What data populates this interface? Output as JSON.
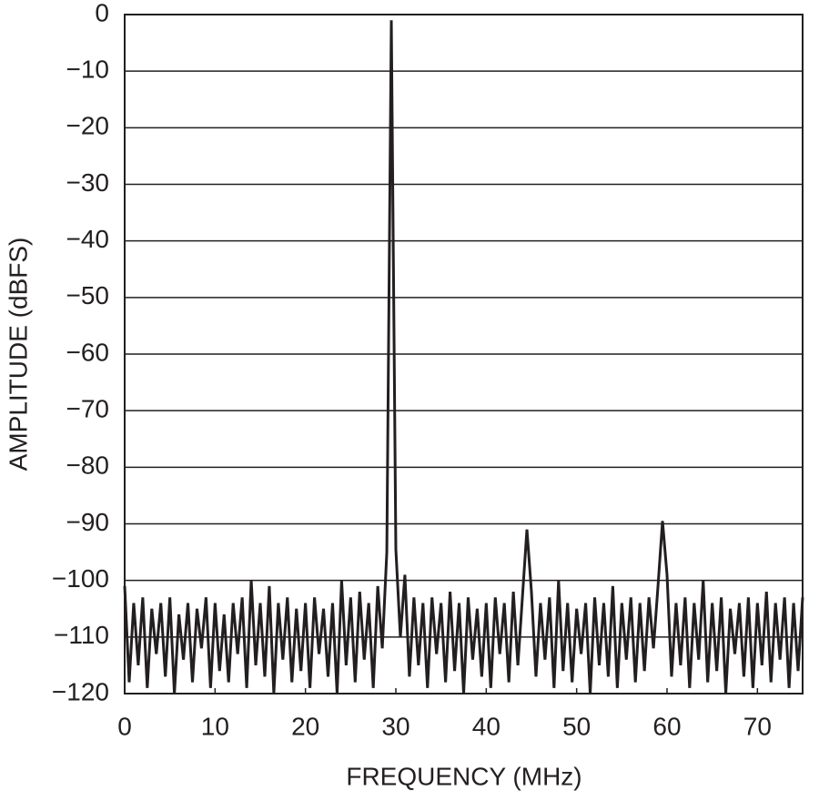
{
  "chart_data": {
    "type": "line",
    "x_label": "FREQUENCY (MHz)",
    "y_label": "AMPLITUDE (dBFS)",
    "xlim": [
      0,
      75
    ],
    "xticks": [
      0,
      10,
      20,
      30,
      40,
      50,
      60,
      70
    ],
    "ylim": [
      -120,
      0
    ],
    "yticks": [
      0,
      {
        "value": -10,
        "label": "−10"
      },
      {
        "value": -20,
        "label": "−20"
      },
      {
        "value": -30,
        "label": "−30"
      },
      {
        "value": -40,
        "label": "−40"
      },
      {
        "value": -50,
        "label": "−50"
      },
      {
        "value": -60,
        "label": "−60"
      },
      {
        "value": -70,
        "label": "−70"
      },
      {
        "value": -80,
        "label": "−80"
      },
      {
        "value": -90,
        "label": "−90"
      },
      {
        "value": -100,
        "label": "−100"
      },
      {
        "value": -110,
        "label": "−110"
      },
      {
        "value": -120,
        "label": "−120"
      }
    ],
    "grid": true,
    "x": [
      0,
      0.5,
      1,
      1.5,
      2,
      2.5,
      3,
      3.5,
      4,
      4.5,
      5,
      5.5,
      6,
      6.5,
      7,
      7.5,
      8,
      8.5,
      9,
      9.5,
      10,
      10.5,
      11,
      11.5,
      12,
      12.5,
      13,
      13.5,
      14,
      14.5,
      15,
      15.5,
      16,
      16.5,
      17,
      17.5,
      18,
      18.5,
      19,
      19.5,
      20,
      20.5,
      21,
      21.5,
      22,
      22.5,
      23,
      23.5,
      24,
      24.5,
      25,
      25.5,
      26,
      26.5,
      27,
      27.5,
      28,
      28.5,
      29,
      29.5,
      30,
      30.5,
      31,
      31.5,
      32,
      32.5,
      33,
      33.5,
      34,
      34.5,
      35,
      35.5,
      36,
      36.5,
      37,
      37.5,
      38,
      38.5,
      39,
      39.5,
      40,
      40.5,
      41,
      41.5,
      42,
      42.5,
      43,
      43.5,
      44,
      44.5,
      45,
      45.5,
      46,
      46.5,
      47,
      47.5,
      48,
      48.5,
      49,
      49.5,
      50,
      50.5,
      51,
      51.5,
      52,
      52.5,
      53,
      53.5,
      54,
      54.5,
      55,
      55.5,
      56,
      56.5,
      57,
      57.5,
      58,
      58.5,
      59,
      59.5,
      60,
      60.5,
      61,
      61.5,
      62,
      62.5,
      63,
      63.5,
      64,
      64.5,
      65,
      65.5,
      66,
      66.5,
      67,
      67.5,
      68,
      68.5,
      69,
      69.5,
      70,
      70.5,
      71,
      71.5,
      72,
      72.5,
      73,
      73.5,
      74,
      74.5,
      75
    ],
    "series": [
      {
        "color": "#231f20",
        "values": [
          -101,
          -118,
          -104,
          -115,
          -103,
          -119,
          -105,
          -113,
          -104,
          -117,
          -103,
          -120,
          -106,
          -114,
          -104,
          -118,
          -105,
          -112,
          -103,
          -119,
          -104,
          -116,
          -106,
          -118,
          -104,
          -113,
          -103,
          -119,
          -100,
          -115,
          -104,
          -117,
          -101,
          -120,
          -104,
          -114,
          -103,
          -118,
          -105,
          -116,
          -104,
          -119,
          -103,
          -113,
          -105,
          -117,
          -104,
          -120,
          -100,
          -115,
          -103,
          -118,
          -102,
          -114,
          -104,
          -119,
          -101,
          -112,
          -95,
          -1,
          -94.5,
          -110,
          -99,
          -117,
          -103,
          -115,
          -104,
          -119,
          -103,
          -113,
          -104,
          -118,
          -102,
          -116,
          -104,
          -120,
          -103,
          -114,
          -105,
          -117,
          -104,
          -119,
          -103,
          -113,
          -104,
          -118,
          -102,
          -115,
          -103,
          -91,
          -102,
          -117,
          -104,
          -114,
          -103,
          -119,
          -100,
          -116,
          -104,
          -118,
          -105,
          -113,
          -104,
          -120,
          -103,
          -115,
          -104,
          -117,
          -101,
          -119,
          -104,
          -114,
          -103,
          -118,
          -104,
          -116,
          -103,
          -112,
          -101,
          -89.5,
          -99,
          -117,
          -104,
          -115,
          -103,
          -119,
          -104,
          -114,
          -100,
          -118,
          -104,
          -116,
          -103,
          -120,
          -105,
          -113,
          -104,
          -117,
          -103,
          -119,
          -104,
          -115,
          -102,
          -118,
          -104,
          -114,
          -103,
          -119,
          -104,
          -116,
          -103
        ]
      }
    ]
  }
}
